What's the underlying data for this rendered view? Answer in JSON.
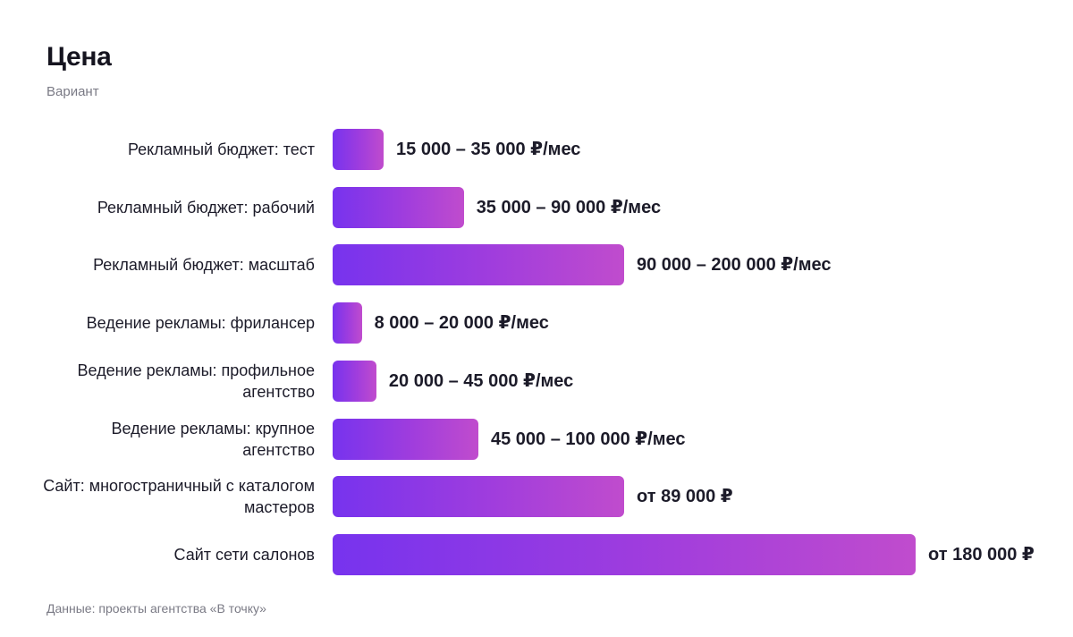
{
  "chart_data": {
    "type": "bar",
    "orientation": "horizontal",
    "title": "Цена",
    "subtitle": "Вариант",
    "categories": [
      "Рекламный бюджет: тест",
      "Рекламный бюджет: рабочий",
      "Рекламный бюджет: масштаб",
      "Ведение рекламы: фрилансер",
      "Ведение рекламы: профильное агентство",
      "Ведение рекламы: крупное агентство",
      "Сайт: многостраничный с каталогом мастеров",
      "Сайт сети салонов"
    ],
    "values": [
      35000,
      90000,
      200000,
      20000,
      30000,
      100000,
      200000,
      400000
    ],
    "value_labels": [
      "15 000 – 35 000 ₽/мес",
      "35 000 – 90 000 ₽/мес",
      "90 000 – 200 000 ₽/мес",
      "8 000 – 20 000 ₽/мес",
      "20 000 – 45 000 ₽/мес",
      "45 000 – 100 000 ₽/мес",
      "от 89 000 ₽",
      "от 180 000 ₽"
    ],
    "xlim": [
      0,
      400000
    ],
    "grid": false,
    "legend": "none",
    "bar_gradient": [
      "#7733ee",
      "#c04ccd"
    ],
    "footnote": "Данные: проекты агентства «В точку»"
  }
}
